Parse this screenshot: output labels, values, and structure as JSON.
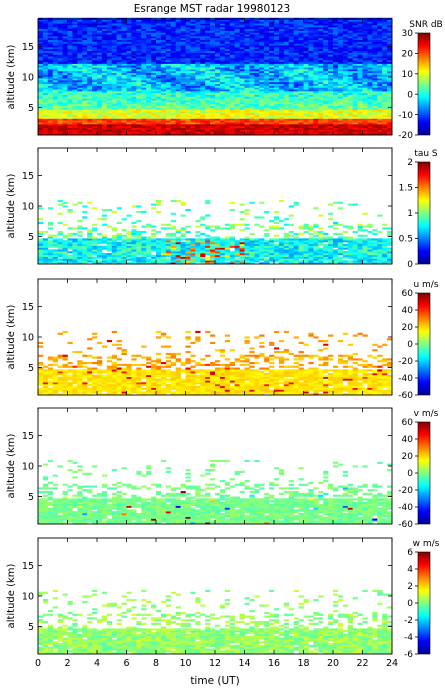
{
  "title": "Esrange MST radar 19980123",
  "xlabel": "time (UT)",
  "ylabel": "altitude (km)",
  "colormap": [
    "#00008f",
    "#0000ff",
    "#0080ff",
    "#00ffff",
    "#80ff80",
    "#ffff00",
    "#ff8000",
    "#ff0000",
    "#800000"
  ],
  "chart_data": [
    {
      "type": "heatmap",
      "id": "snr",
      "colorbar_label": "SNR dB",
      "crange": [
        -20,
        30
      ],
      "cticks": [
        -20,
        -10,
        0,
        10,
        20,
        30
      ],
      "xlim": [
        0,
        24
      ],
      "ylim": [
        0.5,
        19.5
      ],
      "xticks": [
        0,
        2,
        4,
        6,
        8,
        10,
        12,
        14,
        16,
        18,
        20,
        22,
        24
      ],
      "yticks": [
        5,
        10,
        15
      ],
      "coverage_top_km": 19.5
    },
    {
      "type": "heatmap",
      "id": "tau",
      "colorbar_label": "tau S",
      "crange": [
        0,
        2
      ],
      "cticks": [
        0,
        0.5,
        1,
        1.5,
        2
      ],
      "xlim": [
        0,
        24
      ],
      "ylim": [
        0.5,
        19.5
      ],
      "xticks": [
        0,
        2,
        4,
        6,
        8,
        10,
        12,
        14,
        16,
        18,
        20,
        22,
        24
      ],
      "yticks": [
        5,
        10,
        15
      ],
      "coverage_top_km": 11
    },
    {
      "type": "heatmap",
      "id": "u",
      "colorbar_label": "u m/s",
      "crange": [
        -60,
        60
      ],
      "cticks": [
        -60,
        -40,
        -20,
        0,
        20,
        40,
        60
      ],
      "xlim": [
        0,
        24
      ],
      "ylim": [
        0.5,
        19.5
      ],
      "xticks": [
        0,
        2,
        4,
        6,
        8,
        10,
        12,
        14,
        16,
        18,
        20,
        22,
        24
      ],
      "yticks": [
        5,
        10,
        15
      ],
      "coverage_top_km": 11
    },
    {
      "type": "heatmap",
      "id": "v",
      "colorbar_label": "v m/s",
      "crange": [
        -60,
        60
      ],
      "cticks": [
        -60,
        -40,
        -20,
        0,
        20,
        40,
        60
      ],
      "xlim": [
        0,
        24
      ],
      "ylim": [
        0.5,
        19.5
      ],
      "xticks": [
        0,
        2,
        4,
        6,
        8,
        10,
        12,
        14,
        16,
        18,
        20,
        22,
        24
      ],
      "yticks": [
        5,
        10,
        15
      ],
      "coverage_top_km": 11
    },
    {
      "type": "heatmap",
      "id": "w",
      "colorbar_label": "w m/s",
      "crange": [
        -6,
        6
      ],
      "cticks": [
        -6,
        -4,
        -2,
        0,
        2,
        4,
        6
      ],
      "xlim": [
        0,
        24
      ],
      "ylim": [
        0.5,
        19.5
      ],
      "xticks": [
        0,
        2,
        4,
        6,
        8,
        10,
        12,
        14,
        16,
        18,
        20,
        22,
        24
      ],
      "yticks": [
        5,
        10,
        15
      ],
      "coverage_top_km": 11
    }
  ]
}
